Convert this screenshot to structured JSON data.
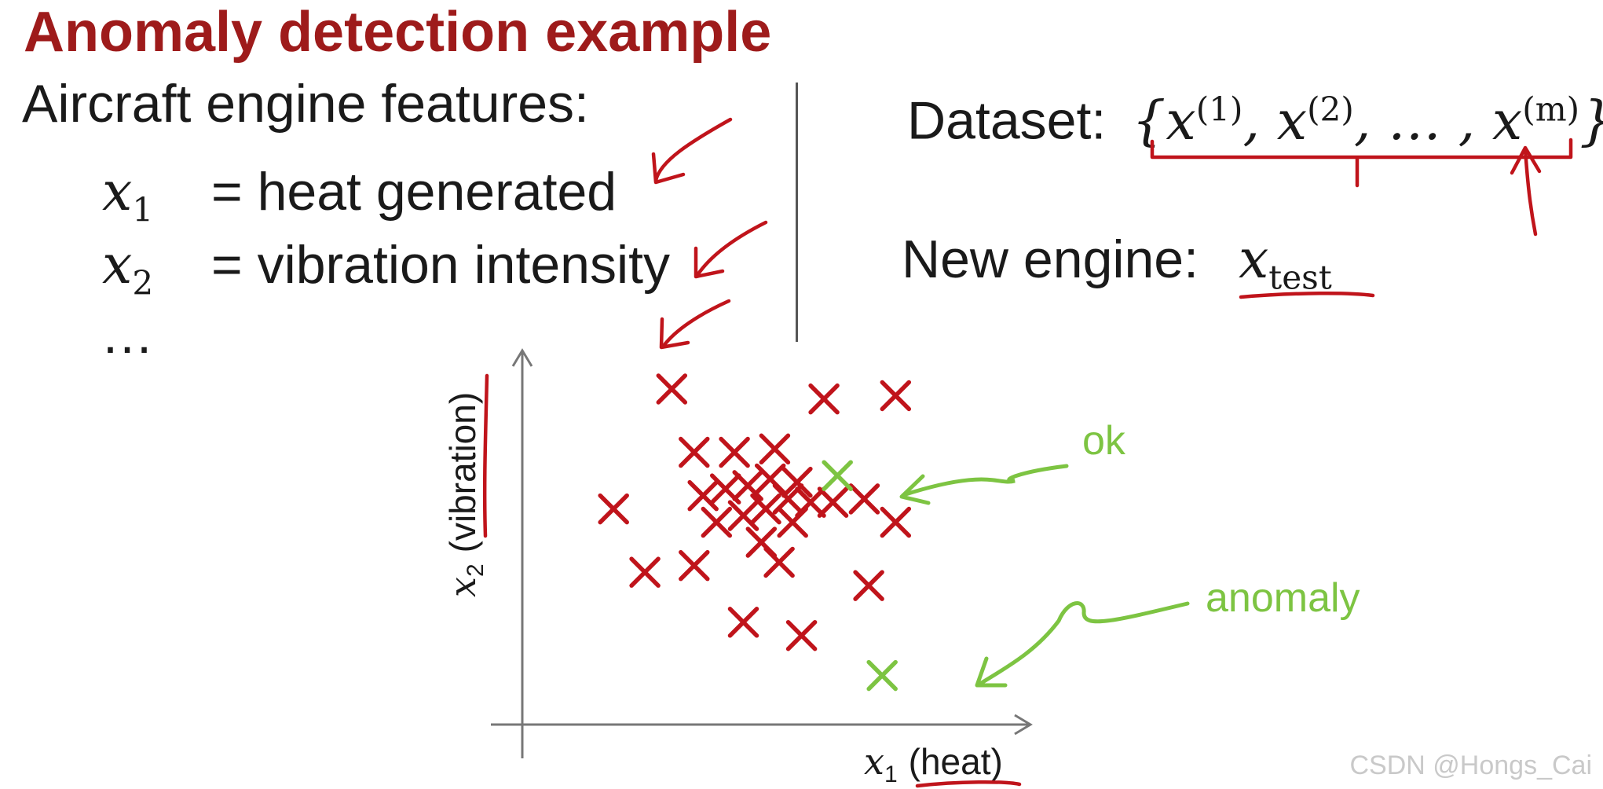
{
  "slide": {
    "title": "Anomaly detection example",
    "features_heading": "Aircraft engine features:",
    "features": [
      {
        "var": "x",
        "sub": "1",
        "desc": "= heat generated"
      },
      {
        "var": "x",
        "sub": "2",
        "desc": "= vibration intensity"
      }
    ],
    "ellipsis": "…",
    "dataset_label": "Dataset:",
    "dataset_set": "{x(1), x(2), … , x(m)}",
    "dataset_elements": [
      "(1)",
      "(2)",
      "(m)"
    ],
    "new_engine_label": "New engine:",
    "new_engine_var": "x",
    "new_engine_sub": "test"
  },
  "chart_data": {
    "type": "scatter",
    "xlabel_var": "x",
    "xlabel_sub": "1",
    "xlabel_text": "(heat)",
    "ylabel_var": "x",
    "ylabel_sub": "2",
    "ylabel_text": "(vibration)",
    "xlim": [
      0,
      10
    ],
    "ylim": [
      0,
      10
    ],
    "grid": false,
    "series": [
      {
        "name": "",
        "color": "#c0141b",
        "marker": "x",
        "points": [
          [
            2.9,
            9.6
          ],
          [
            6.3,
            9.3
          ],
          [
            7.9,
            9.4
          ],
          [
            1.6,
            6.0
          ],
          [
            2.3,
            4.1
          ],
          [
            3.4,
            7.7
          ],
          [
            4.3,
            7.7
          ],
          [
            5.2,
            7.8
          ],
          [
            3.6,
            6.4
          ],
          [
            4.1,
            6.6
          ],
          [
            4.6,
            6.7
          ],
          [
            5.1,
            6.9
          ],
          [
            5.7,
            6.8
          ],
          [
            3.9,
            5.6
          ],
          [
            4.5,
            5.8
          ],
          [
            5.0,
            6.0
          ],
          [
            5.5,
            6.3
          ],
          [
            6.0,
            6.2
          ],
          [
            6.5,
            6.2
          ],
          [
            7.2,
            6.3
          ],
          [
            4.9,
            5.0
          ],
          [
            5.6,
            5.6
          ],
          [
            3.4,
            4.3
          ],
          [
            5.3,
            4.4
          ],
          [
            7.9,
            5.6
          ],
          [
            7.3,
            3.7
          ],
          [
            4.5,
            2.6
          ],
          [
            5.8,
            2.2
          ]
        ]
      },
      {
        "name": "",
        "color": "#7dc442",
        "marker": "x",
        "points": [
          [
            6.6,
            7.0
          ],
          [
            7.6,
            1.0
          ]
        ]
      }
    ],
    "annotations": [
      {
        "text": "ok",
        "color": "#7dc442"
      },
      {
        "text": "anomaly",
        "color": "#7dc442"
      }
    ]
  },
  "watermark": "CSDN @Hongs_Cai",
  "colors": {
    "title": "#9e1b1b",
    "ink_red": "#c0141b",
    "ink_green": "#7dc442",
    "axis": "#777777",
    "text": "#1a1a1a"
  }
}
